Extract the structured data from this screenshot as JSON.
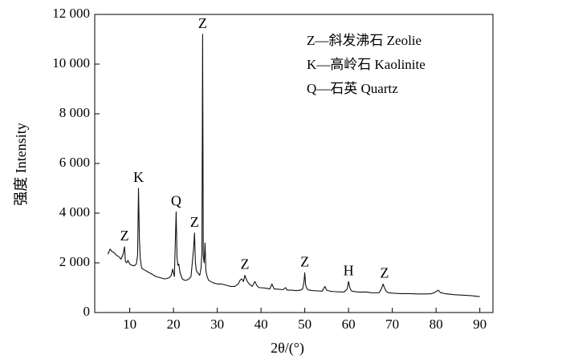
{
  "chart_data": {
    "type": "line",
    "title": "",
    "xlabel": "2θ/(°)",
    "ylabel": "强度 Intensity",
    "xlim": [
      2,
      93
    ],
    "ylim": [
      0,
      12000
    ],
    "x_ticks": [
      10,
      20,
      30,
      40,
      50,
      60,
      70,
      80,
      90
    ],
    "x_tick_labels": [
      "10",
      "20",
      "30",
      "40",
      "50",
      "60",
      "70",
      "80",
      "90"
    ],
    "y_ticks": [
      0,
      2000,
      4000,
      6000,
      8000,
      10000,
      12000
    ],
    "y_tick_labels": [
      "0",
      "2 000",
      "4 000",
      "6 000",
      "8 000",
      "10 000",
      "12 000"
    ],
    "grid": false,
    "legend_position": "top-right",
    "legend": [
      "Z—斜发沸石 Zeolie",
      "K—高岭石 Kaolinite",
      "Q—石英 Quartz"
    ],
    "series": [
      {
        "x": [
          5,
          5.5,
          6,
          6.5,
          7,
          7.5,
          8,
          8.5,
          8.8,
          9,
          9.3,
          9.6,
          10,
          10.5,
          11,
          11.5,
          11.8,
          12,
          12.2,
          12.4,
          12.7,
          13,
          13.5,
          14,
          15,
          16,
          17,
          18,
          19,
          19.5,
          19.8,
          20.2,
          20.6,
          20.8,
          21.0,
          21.2,
          21.5,
          22,
          22.5,
          23,
          23.5,
          24,
          24.3,
          24.6,
          24.8,
          25.0,
          25.2,
          25.5,
          26,
          26.3,
          26.5,
          26.65,
          26.8,
          27,
          27.2,
          27.4,
          27.6,
          28,
          28.5,
          29,
          30,
          31,
          32,
          33,
          34,
          34.8,
          35.2,
          35.6,
          36,
          36.3,
          36.6,
          36.9,
          37.3,
          38,
          38.6,
          39,
          39.5,
          40,
          41,
          42,
          42.5,
          43,
          44,
          45,
          45.6,
          46,
          47,
          48,
          49,
          49.5,
          49.8,
          50.0,
          50.2,
          50.5,
          51,
          52,
          53,
          54,
          54.6,
          55,
          56,
          57,
          58,
          59,
          59.7,
          60.0,
          60.3,
          60.6,
          61,
          62,
          63,
          64,
          65,
          66,
          67,
          67.5,
          67.9,
          68.2,
          68.5,
          69,
          70,
          72,
          74,
          76,
          78,
          79,
          79.8,
          80.5,
          81,
          82,
          84,
          86,
          88,
          90
        ],
        "y": [
          2350,
          2550,
          2450,
          2400,
          2300,
          2250,
          2150,
          2350,
          2650,
          2050,
          2000,
          2100,
          1950,
          1900,
          1880,
          1950,
          2300,
          5000,
          3000,
          2200,
          1800,
          1750,
          1700,
          1650,
          1550,
          1450,
          1400,
          1350,
          1400,
          1500,
          1750,
          1450,
          4050,
          2200,
          1900,
          1950,
          1600,
          1350,
          1300,
          1300,
          1350,
          1450,
          2000,
          2600,
          3200,
          2000,
          1700,
          1600,
          1500,
          1800,
          2400,
          11200,
          2300,
          2000,
          2800,
          1700,
          1500,
          1300,
          1250,
          1200,
          1150,
          1150,
          1100,
          1050,
          1050,
          1150,
          1300,
          1350,
          1250,
          1500,
          1350,
          1250,
          1150,
          1050,
          1250,
          1100,
          1000,
          1000,
          980,
          950,
          1150,
          950,
          940,
          920,
          1000,
          900,
          900,
          880,
          900,
          950,
          1200,
          1600,
          1100,
          950,
          900,
          880,
          870,
          860,
          1050,
          900,
          850,
          840,
          830,
          830,
          950,
          1250,
          1000,
          880,
          850,
          830,
          820,
          830,
          800,
          790,
          800,
          950,
          1150,
          1000,
          880,
          800,
          780,
          760,
          760,
          750,
          750,
          760,
          820,
          900,
          800,
          760,
          720,
          700,
          680,
          640
        ]
      }
    ],
    "annotations": [
      {
        "label": "Z",
        "x": 8.8,
        "y": 2650
      },
      {
        "label": "K",
        "x": 12.0,
        "y": 5000
      },
      {
        "label": "Q",
        "x": 20.6,
        "y": 4050
      },
      {
        "label": "Z",
        "x": 24.8,
        "y": 3200
      },
      {
        "label": "Z",
        "x": 26.65,
        "y": 11200
      },
      {
        "label": "Z",
        "x": 36.3,
        "y": 1500
      },
      {
        "label": "Z",
        "x": 50.0,
        "y": 1600
      },
      {
        "label": "H",
        "x": 60.0,
        "y": 1250
      },
      {
        "label": "Z",
        "x": 68.2,
        "y": 1150
      }
    ]
  }
}
